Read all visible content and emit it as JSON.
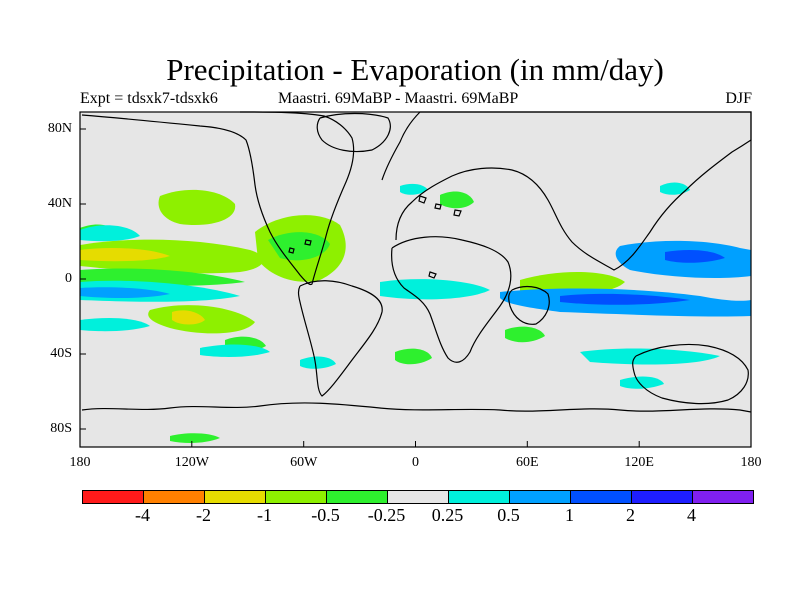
{
  "header": {
    "title": "Precipitation - Evaporation (in mm/day)",
    "experiment": "Expt = tdsxk7-tdsxk6",
    "period": "Maastri. 69MaBP - Maastri. 69MaBP",
    "season": "DJF"
  },
  "map": {
    "lat_labels": [
      "80N",
      "40N",
      "0",
      "40S",
      "80S"
    ],
    "lon_labels": [
      "180",
      "120W",
      "60W",
      "0",
      "60E",
      "120E",
      "180"
    ],
    "neutral_color": "#e6e6e6"
  },
  "colorbar": {
    "colors": [
      "#ff1a1a",
      "#ff8000",
      "#e6dc00",
      "#8ef000",
      "#2ef02e",
      "#e6e6e6",
      "#00f0dc",
      "#00a0ff",
      "#0050ff",
      "#1e1eff",
      "#8020f0"
    ],
    "labels": [
      "-4",
      "-2",
      "-1",
      "-0.5",
      "-0.25",
      "0.25",
      "0.5",
      "1",
      "2",
      "4"
    ]
  }
}
